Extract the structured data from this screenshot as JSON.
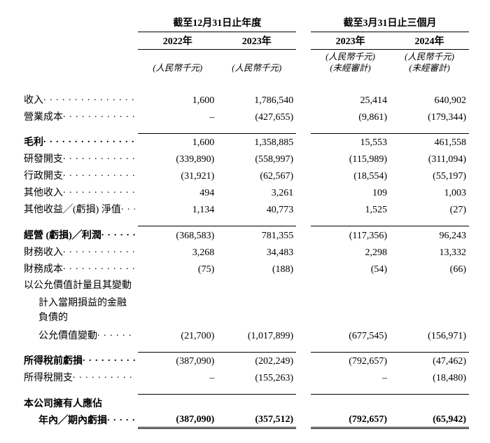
{
  "headers": {
    "group1": "截至12月31日止年度",
    "group2": "截至3月31日止三個月",
    "y1": "2022年",
    "y2": "2023年",
    "y3": "2023年",
    "y4": "2024年",
    "unit": "(人民幣千元)",
    "unaudited": "(未經審計)"
  },
  "rows": {
    "revenue": {
      "label": "收入",
      "c1": "1,600",
      "c2": "1,786,540",
      "c3": "25,414",
      "c4": "640,902"
    },
    "cogs": {
      "label": "營業成本",
      "c1": "–",
      "c2": "(427,655)",
      "c3": "(9,861)",
      "c4": "(179,344)"
    },
    "gross": {
      "label": "毛利",
      "c1": "1,600",
      "c2": "1,358,885",
      "c3": "15,553",
      "c4": "461,558"
    },
    "rnd": {
      "label": "研發開支",
      "c1": "(339,890)",
      "c2": "(558,997)",
      "c3": "(115,989)",
      "c4": "(311,094)"
    },
    "admin": {
      "label": "行政開支",
      "c1": "(31,921)",
      "c2": "(62,567)",
      "c3": "(18,554)",
      "c4": "(55,197)"
    },
    "otherinc": {
      "label": "其他收入",
      "c1": "494",
      "c2": "3,261",
      "c3": "109",
      "c4": "1,003"
    },
    "othergain": {
      "label": "其他收益╱(虧損) 淨值",
      "c1": "1,134",
      "c2": "40,773",
      "c3": "1,525",
      "c4": "(27)"
    },
    "oploss": {
      "label": "經營 (虧損)╱利潤",
      "c1": "(368,583)",
      "c2": "781,355",
      "c3": "(117,356)",
      "c4": "96,243"
    },
    "financeinc": {
      "label": "財務收入",
      "c1": "3,268",
      "c2": "34,483",
      "c3": "2,298",
      "c4": "13,332"
    },
    "financecost": {
      "label": "財務成本",
      "c1": "(75)",
      "c2": "(188)",
      "c3": "(54)",
      "c4": "(66)"
    },
    "fvline1": "以公允價值計量且其變動",
    "fvline2": "計入當期損益的金融負債的",
    "fvline3": "公允價值變動",
    "fv": {
      "c1": "(21,700)",
      "c2": "(1,017,899)",
      "c3": "(677,545)",
      "c4": "(156,971)"
    },
    "pretax": {
      "label": "所得稅前虧損",
      "c1": "(387,090)",
      "c2": "(202,249)",
      "c3": "(792,657)",
      "c4": "(47,462)"
    },
    "taxexp": {
      "label": "所得稅開支",
      "c1": "–",
      "c2": "(155,263)",
      "c3": "–",
      "c4": "(18,480)"
    },
    "ownerline1": "本公司擁有人應佔",
    "ownerline2": "年內╱期內虧損",
    "owner": {
      "c1": "(387,090)",
      "c2": "(357,512)",
      "c3": "(792,657)",
      "c4": "(65,942)"
    }
  }
}
